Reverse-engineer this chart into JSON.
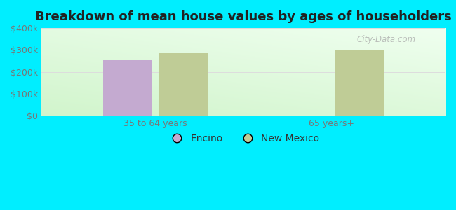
{
  "title": "Breakdown of mean house values by ages of householders",
  "categories": [
    "35 to 64 years",
    "65 years+"
  ],
  "encino_values": [
    252000,
    null
  ],
  "newmexico_values": [
    285000,
    300000
  ],
  "encino_color": "#c4aad0",
  "newmexico_color": "#bfcc96",
  "background_color": "#00eeff",
  "ylim": [
    0,
    400000
  ],
  "yticks": [
    0,
    100000,
    200000,
    300000,
    400000
  ],
  "ytick_labels": [
    "$0",
    "$100k",
    "$200k",
    "$300k",
    "$400k"
  ],
  "legend_labels": [
    "Encino",
    "New Mexico"
  ],
  "bar_width": 0.28,
  "watermark": "City-Data.com",
  "grid_color": "#dddddd",
  "tick_color": "#777777",
  "title_color": "#222222"
}
